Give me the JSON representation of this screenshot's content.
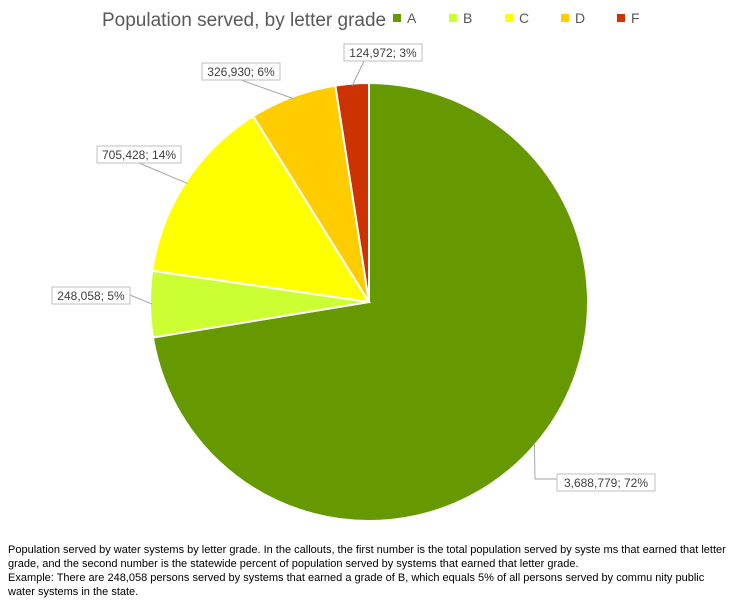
{
  "chart_data": {
    "type": "pie",
    "title": "Population served, by letter grade",
    "categories": [
      "A",
      "B",
      "C",
      "D",
      "F"
    ],
    "values": [
      3688779,
      248058,
      705428,
      326930,
      124972
    ],
    "percents": [
      72,
      5,
      14,
      6,
      3
    ],
    "labels": [
      "3,688,779; 72%",
      "248,058; 5%",
      "705,428; 14%",
      "326,930; 6%",
      "124,972; 3%"
    ],
    "colors": [
      "#669900",
      "#ccff33",
      "#ffff00",
      "#ffcc00",
      "#cc3300"
    ],
    "legend": {
      "position": "top-right",
      "entries": [
        "A",
        "B",
        "C",
        "D",
        "F"
      ]
    }
  },
  "caption": {
    "line1": "Population served by water systems by letter grade. In the callouts, the first number is the total population served by syste ms that earned that letter grade, and the second number is the statewide percent of population served by systems that earned that letter grade.",
    "line2": "Example: There are 248,058 persons served by systems that earned a grade of B, which equals 5% of all persons served by commu nity public water systems in the state."
  }
}
